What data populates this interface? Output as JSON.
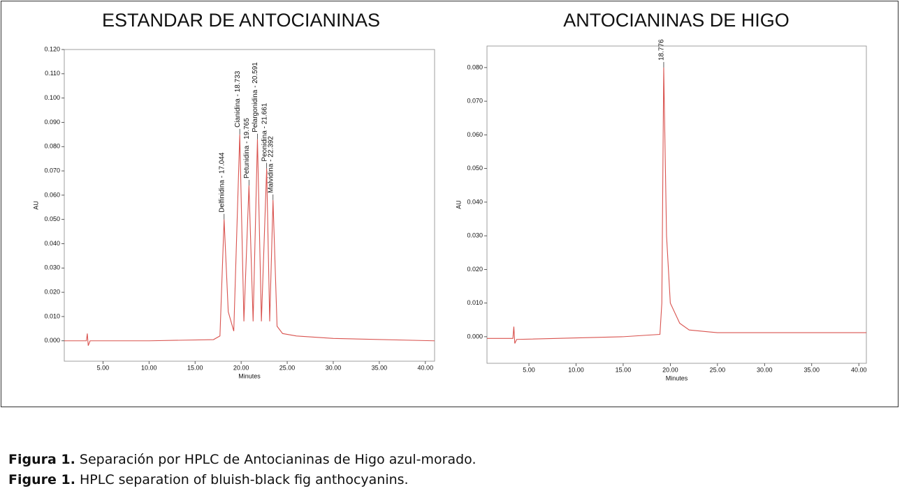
{
  "chart_data": [
    {
      "type": "line",
      "title": "ESTANDAR DE ANTOCIANINAS",
      "x_label": "Minutes",
      "y_label": "AU",
      "xlim": [
        0.8,
        41
      ],
      "ylim": [
        -0.0084,
        0.12
      ],
      "xticks": [
        {
          "value": 5,
          "label": "5.00"
        },
        {
          "value": 10,
          "label": "10.00"
        },
        {
          "value": 15,
          "label": "15.00"
        },
        {
          "value": 20,
          "label": "20.00"
        },
        {
          "value": 25,
          "label": "25.00"
        },
        {
          "value": 30,
          "label": "30.00"
        },
        {
          "value": 35,
          "label": "35.00"
        },
        {
          "value": 40,
          "label": "40.00"
        }
      ],
      "yticks": [
        {
          "value": 0,
          "label": "0.000"
        },
        {
          "value": 0.01,
          "label": "0.010"
        },
        {
          "value": 0.02,
          "label": "0.020"
        },
        {
          "value": 0.03,
          "label": "0.030"
        },
        {
          "value": 0.04,
          "label": "0.040"
        },
        {
          "value": 0.05,
          "label": "0.050"
        },
        {
          "value": 0.06,
          "label": "0.060"
        },
        {
          "value": 0.07,
          "label": "0.070"
        },
        {
          "value": 0.08,
          "label": "0.080"
        },
        {
          "value": 0.09,
          "label": "0.090"
        },
        {
          "value": 0.1,
          "label": "0.100"
        },
        {
          "value": 0.11,
          "label": "0.110"
        },
        {
          "value": 0.12,
          "label": "0.120"
        }
      ],
      "series": [
        {
          "color": "#d9534f",
          "x": [
            0.8,
            3.2,
            3.3,
            3.4,
            3.6,
            10,
            17,
            17.7,
            18.15,
            18.6,
            19.2,
            19.85,
            20.3,
            20.85,
            21.3,
            21.77,
            22.2,
            22.77,
            23.1,
            23.46,
            23.9,
            24.5,
            26,
            30,
            41
          ],
          "values": [
            0,
            0,
            0.003,
            -0.002,
            0,
            0,
            0.0005,
            0.002,
            0.05,
            0.012,
            0.004,
            0.085,
            0.008,
            0.064,
            0.008,
            0.083,
            0.008,
            0.071,
            0.008,
            0.058,
            0.006,
            0.003,
            0.002,
            0.001,
            0
          ]
        }
      ],
      "annotations": [
        {
          "text": "Delfinidina - 17.044",
          "x": 18.15,
          "y": 0.05
        },
        {
          "text": "Cianidina - 18.733",
          "x": 19.85,
          "y": 0.085
        },
        {
          "text": "Petunidina - 19.765",
          "x": 20.85,
          "y": 0.064
        },
        {
          "text": "Pelargonidina - 20.591",
          "x": 21.77,
          "y": 0.083
        },
        {
          "text": "Peonidina - 21.661",
          "x": 22.77,
          "y": 0.071
        },
        {
          "text": "Malvidina - 22.392",
          "x": 23.46,
          "y": 0.058
        }
      ]
    },
    {
      "type": "line",
      "title": "ANTOCIANINAS DE HIGO",
      "x_label": "Minutes",
      "y_label": "AU",
      "xlim": [
        0.55,
        40.8
      ],
      "ylim": [
        -0.0079,
        0.0864
      ],
      "xticks": [
        {
          "value": 5,
          "label": "5.00"
        },
        {
          "value": 10,
          "label": "10.00"
        },
        {
          "value": 15,
          "label": "15.00"
        },
        {
          "value": 20,
          "label": "20.00"
        },
        {
          "value": 25,
          "label": "25.00"
        },
        {
          "value": 30,
          "label": "30.00"
        },
        {
          "value": 35,
          "label": "35.00"
        },
        {
          "value": 40,
          "label": "40.00"
        }
      ],
      "yticks": [
        {
          "value": 0,
          "label": "0.000"
        },
        {
          "value": 0.01,
          "label": "0.010"
        },
        {
          "value": 0.02,
          "label": "0.020"
        },
        {
          "value": 0.03,
          "label": "0.030"
        },
        {
          "value": 0.04,
          "label": "0.040"
        },
        {
          "value": 0.05,
          "label": "0.050"
        },
        {
          "value": 0.06,
          "label": "0.060"
        },
        {
          "value": 0.07,
          "label": "0.070"
        },
        {
          "value": 0.08,
          "label": "0.080"
        }
      ],
      "series": [
        {
          "color": "#d9534f",
          "x": [
            0.55,
            3.3,
            3.4,
            3.5,
            3.7,
            15,
            18.9,
            19.1,
            19.3,
            19.6,
            20,
            21,
            22,
            25,
            35,
            40.8
          ],
          "values": [
            -0.0005,
            -0.0005,
            0.003,
            -0.002,
            -0.0008,
            0,
            0.0007,
            0.01,
            0.08,
            0.03,
            0.01,
            0.004,
            0.002,
            0.0012,
            0.0012,
            0.0012
          ]
        }
      ],
      "annotations": [
        {
          "text": "18.776",
          "x": 19.3,
          "y": 0.08
        }
      ]
    }
  ],
  "caption": [
    {
      "label": "Figura 1.",
      "text": "Separación por HPLC de Antocianinas de Higo azul-morado."
    },
    {
      "label": "Figure 1.",
      "text": "HPLC separation of bluish-black fig anthocyanins."
    }
  ]
}
